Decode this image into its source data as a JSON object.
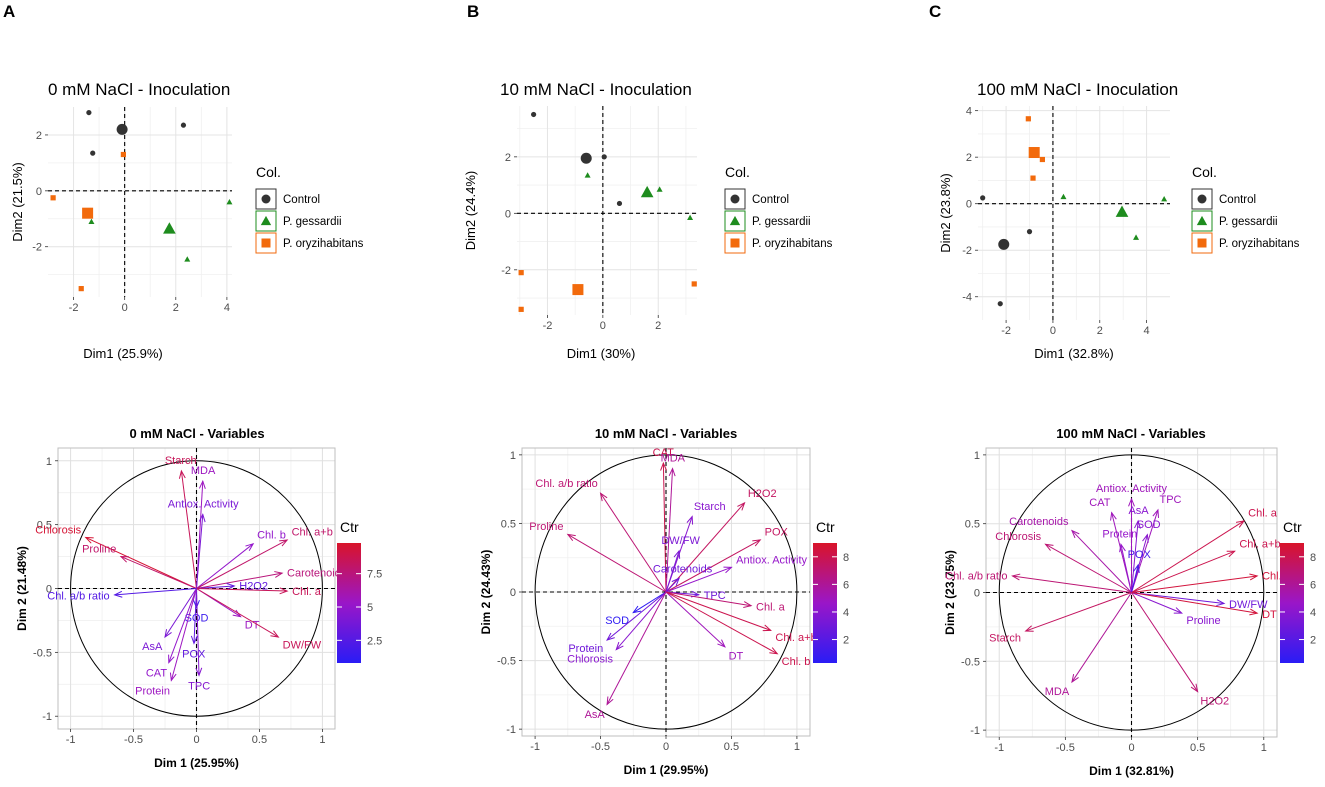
{
  "panels": [
    "A",
    "B",
    "C"
  ],
  "legend": {
    "title": "Col.",
    "groups": [
      {
        "name": "Control",
        "color": "#333333",
        "shape": "circle"
      },
      {
        "name": "P. gessardii",
        "color": "#1e8c1e",
        "shape": "triangle"
      },
      {
        "name": "P. oryzihabitans",
        "color": "#f26a0c",
        "shape": "square"
      }
    ]
  },
  "ctr_legend": {
    "title": "Ctr",
    "color_low": "#2a1cf5",
    "color_mid": "#9a16c8",
    "color_high": "#d9142a"
  },
  "chart_data": [
    {
      "type": "scatter",
      "title": "0 mM NaCl - Inoculation",
      "xlabel": "Dim1 (25.9%)",
      "ylabel": "Dim2 (21.5%)",
      "xlim": [
        -3.0,
        4.2
      ],
      "ylim": [
        -3.8,
        3.0
      ],
      "xticks": [
        -2,
        0,
        2,
        4
      ],
      "yticks": [
        -2,
        0,
        2
      ],
      "points": [
        {
          "group": "Control",
          "x": -1.4,
          "y": 2.8
        },
        {
          "group": "Control",
          "x": -1.25,
          "y": 1.35
        },
        {
          "group": "Control",
          "x": 2.3,
          "y": 2.35
        },
        {
          "group": "Control",
          "x": -0.1,
          "y": 2.2,
          "centroid": true
        },
        {
          "group": "P. gessardii",
          "x": -1.3,
          "y": -1.1
        },
        {
          "group": "P. gessardii",
          "x": 2.45,
          "y": -2.45
        },
        {
          "group": "P. gessardii",
          "x": 4.1,
          "y": -0.4
        },
        {
          "group": "P. gessardii",
          "x": 1.75,
          "y": -1.35,
          "centroid": true
        },
        {
          "group": "P. oryzihabitans",
          "x": -0.05,
          "y": 1.3
        },
        {
          "group": "P. oryzihabitans",
          "x": -2.8,
          "y": -0.25
        },
        {
          "group": "P. oryzihabitans",
          "x": -1.7,
          "y": -3.5
        },
        {
          "group": "P. oryzihabitans",
          "x": -1.45,
          "y": -0.8,
          "centroid": true
        }
      ]
    },
    {
      "type": "scatter",
      "title": "10 mM NaCl - Inoculation",
      "xlabel": "Dim1 (30%)",
      "ylabel": "Dim2 (24.4%)",
      "xlim": [
        -3.1,
        3.4
      ],
      "ylim": [
        -3.6,
        3.8
      ],
      "xticks": [
        -2,
        0,
        2
      ],
      "yticks": [
        -2,
        0,
        2
      ],
      "points": [
        {
          "group": "Control",
          "x": -2.5,
          "y": 3.5
        },
        {
          "group": "Control",
          "x": 0.05,
          "y": 2.0
        },
        {
          "group": "Control",
          "x": 0.6,
          "y": 0.35
        },
        {
          "group": "Control",
          "x": -0.6,
          "y": 1.95,
          "centroid": true
        },
        {
          "group": "P. gessardii",
          "x": -0.55,
          "y": 1.35
        },
        {
          "group": "P. gessardii",
          "x": 2.05,
          "y": 0.85
        },
        {
          "group": "P. gessardii",
          "x": 3.15,
          "y": -0.15
        },
        {
          "group": "P. gessardii",
          "x": 1.6,
          "y": 0.75,
          "centroid": true
        },
        {
          "group": "P. oryzihabitans",
          "x": -2.95,
          "y": -2.1
        },
        {
          "group": "P. oryzihabitans",
          "x": -2.95,
          "y": -3.4
        },
        {
          "group": "P. oryzihabitans",
          "x": 3.3,
          "y": -2.5
        },
        {
          "group": "P. oryzihabitans",
          "x": -0.9,
          "y": -2.7,
          "centroid": true
        }
      ]
    },
    {
      "type": "scatter",
      "title": "100 mM NaCl - Inoculation",
      "xlabel": "Dim1 (32.8%)",
      "ylabel": "Dim2 (23.8%)",
      "xlim": [
        -3.2,
        5.0
      ],
      "ylim": [
        -5.0,
        4.2
      ],
      "xticks": [
        -2,
        0,
        2,
        4
      ],
      "yticks": [
        -4,
        -2,
        0,
        2,
        4
      ],
      "points": [
        {
          "group": "Control",
          "x": -3.0,
          "y": 0.25
        },
        {
          "group": "Control",
          "x": -2.25,
          "y": -4.3
        },
        {
          "group": "Control",
          "x": -1.0,
          "y": -1.2
        },
        {
          "group": "Control",
          "x": -2.1,
          "y": -1.75,
          "centroid": true
        },
        {
          "group": "P. gessardii",
          "x": 0.45,
          "y": 0.3
        },
        {
          "group": "P. gessardii",
          "x": 3.55,
          "y": -1.45
        },
        {
          "group": "P. gessardii",
          "x": 4.75,
          "y": 0.2
        },
        {
          "group": "P. gessardii",
          "x": 2.95,
          "y": -0.35,
          "centroid": true
        },
        {
          "group": "P. oryzihabitans",
          "x": -1.05,
          "y": 3.65
        },
        {
          "group": "P. oryzihabitans",
          "x": -0.45,
          "y": 1.9
        },
        {
          "group": "P. oryzihabitans",
          "x": -0.85,
          "y": 1.1
        },
        {
          "group": "P. oryzihabitans",
          "x": -0.8,
          "y": 2.2,
          "centroid": true
        }
      ]
    },
    {
      "type": "biplot",
      "title": "0 mM NaCl - Variables",
      "xlabel": "Dim 1 (25.95%)",
      "ylabel": "Dim 2 (21.48%)",
      "xlim": [
        -1.1,
        1.1
      ],
      "ylim": [
        -1.1,
        1.1
      ],
      "ticks": [
        -1.0,
        -0.5,
        0.0,
        0.5,
        1.0
      ],
      "ctr_range": [
        0.8,
        9.8
      ],
      "ctr_ticks": [
        2.5,
        5.0,
        7.5
      ],
      "vectors": [
        {
          "label": "Starch",
          "x": -0.12,
          "y": 0.92,
          "ctr": 8.5
        },
        {
          "label": "MDA",
          "x": 0.05,
          "y": 0.84,
          "ctr": 5.5
        },
        {
          "label": "Antiox. Activity",
          "x": 0.05,
          "y": 0.58,
          "ctr": 4.0
        },
        {
          "label": "Chlorosis",
          "x": -0.88,
          "y": 0.4,
          "ctr": 9.5
        },
        {
          "label": "Proline",
          "x": -0.6,
          "y": 0.25,
          "ctr": 8.0
        },
        {
          "label": "Chl. b",
          "x": 0.45,
          "y": 0.35,
          "ctr": 5.0
        },
        {
          "label": "Chl. a+b",
          "x": 0.72,
          "y": 0.38,
          "ctr": 8.0
        },
        {
          "label": "Carotenoids",
          "x": 0.68,
          "y": 0.12,
          "ctr": 7.5
        },
        {
          "label": "H2O2",
          "x": 0.3,
          "y": 0.02,
          "ctr": 3.0
        },
        {
          "label": "Chl. a",
          "x": 0.72,
          "y": -0.02,
          "ctr": 8.5
        },
        {
          "label": "Chl. a/b ratio",
          "x": -0.65,
          "y": -0.05,
          "ctr": 2.5
        },
        {
          "label": "SOD",
          "x": 0.0,
          "y": -0.15,
          "ctr": 1.5
        },
        {
          "label": "DT",
          "x": 0.35,
          "y": -0.22,
          "ctr": 5.5
        },
        {
          "label": "DW/FW",
          "x": 0.65,
          "y": -0.38,
          "ctr": 8.5
        },
        {
          "label": "AsA",
          "x": -0.25,
          "y": -0.38,
          "ctr": 4.0
        },
        {
          "label": "POX",
          "x": -0.02,
          "y": -0.43,
          "ctr": 3.0
        },
        {
          "label": "CAT",
          "x": -0.22,
          "y": -0.58,
          "ctr": 5.0
        },
        {
          "label": "Protein",
          "x": -0.2,
          "y": -0.72,
          "ctr": 5.5
        },
        {
          "label": "TPC",
          "x": 0.02,
          "y": -0.68,
          "ctr": 4.5
        }
      ]
    },
    {
      "type": "biplot",
      "title": "10 mM NaCl - Variables",
      "xlabel": "Dim 1 (29.95%)",
      "ylabel": "Dim 2 (24.43%)",
      "xlim": [
        -1.1,
        1.1
      ],
      "ylim": [
        -1.05,
        1.05
      ],
      "ticks": [
        -1.0,
        -0.5,
        0.0,
        0.5,
        1.0
      ],
      "ctr_range": [
        0.3,
        9.0
      ],
      "ctr_ticks": [
        2,
        4,
        6,
        8
      ],
      "vectors": [
        {
          "label": "CAT",
          "x": -0.02,
          "y": 0.94,
          "ctr": 8.0
        },
        {
          "label": "MDA",
          "x": 0.05,
          "y": 0.9,
          "ctr": 6.0
        },
        {
          "label": "Chl. a/b ratio",
          "x": -0.5,
          "y": 0.72,
          "ctr": 7.0
        },
        {
          "label": "H2O2",
          "x": 0.6,
          "y": 0.65,
          "ctr": 7.5
        },
        {
          "label": "Starch",
          "x": 0.2,
          "y": 0.55,
          "ctr": 4.0
        },
        {
          "label": "Proline",
          "x": -0.75,
          "y": 0.42,
          "ctr": 7.0
        },
        {
          "label": "POX",
          "x": 0.72,
          "y": 0.38,
          "ctr": 7.5
        },
        {
          "label": "DW/FW",
          "x": 0.1,
          "y": 0.3,
          "ctr": 3.5
        },
        {
          "label": "Antiox. Activity",
          "x": 0.5,
          "y": 0.18,
          "ctr": 4.5
        },
        {
          "label": "Carotenoids",
          "x": 0.1,
          "y": 0.1,
          "ctr": 3.0
        },
        {
          "label": "TPC",
          "x": 0.25,
          "y": -0.02,
          "ctr": 3.0
        },
        {
          "label": "SOD",
          "x": -0.25,
          "y": -0.15,
          "ctr": 0.5
        },
        {
          "label": "Chl. a",
          "x": 0.65,
          "y": -0.1,
          "ctr": 7.0
        },
        {
          "label": "Chl. a+b",
          "x": 0.8,
          "y": -0.28,
          "ctr": 8.0
        },
        {
          "label": "DT",
          "x": 0.45,
          "y": -0.4,
          "ctr": 5.0
        },
        {
          "label": "Chl. b",
          "x": 0.85,
          "y": -0.45,
          "ctr": 8.0
        },
        {
          "label": "Protein",
          "x": -0.45,
          "y": -0.35,
          "ctr": 3.0
        },
        {
          "label": "Chlorosis",
          "x": -0.38,
          "y": -0.42,
          "ctr": 4.0
        },
        {
          "label": "AsA",
          "x": -0.45,
          "y": -0.82,
          "ctr": 6.0
        }
      ]
    },
    {
      "type": "biplot",
      "title": "100 mM NaCl - Variables",
      "xlabel": "Dim 1 (32.81%)",
      "ylabel": "Dim 2 (23.75%)",
      "xlim": [
        -1.1,
        1.1
      ],
      "ylim": [
        -1.05,
        1.05
      ],
      "ticks": [
        -1.0,
        -0.5,
        0.0,
        0.5,
        1.0
      ],
      "ctr_range": [
        0.3,
        9.0
      ],
      "ctr_ticks": [
        2,
        4,
        6,
        8
      ],
      "vectors": [
        {
          "label": "Antiox. Activity",
          "x": 0.0,
          "y": 0.68,
          "ctr": 5.0
        },
        {
          "label": "TPC",
          "x": 0.2,
          "y": 0.6,
          "ctr": 5.0
        },
        {
          "label": "CAT",
          "x": -0.15,
          "y": 0.58,
          "ctr": 5.0
        },
        {
          "label": "AsA",
          "x": 0.05,
          "y": 0.52,
          "ctr": 4.0
        },
        {
          "label": "Carotenoids",
          "x": -0.45,
          "y": 0.45,
          "ctr": 5.5
        },
        {
          "label": "SOD",
          "x": 0.12,
          "y": 0.42,
          "ctr": 4.0
        },
        {
          "label": "Protein",
          "x": -0.08,
          "y": 0.35,
          "ctr": 4.5
        },
        {
          "label": "Chl. a",
          "x": 0.85,
          "y": 0.52,
          "ctr": 8.0
        },
        {
          "label": "Chlorosis",
          "x": -0.65,
          "y": 0.35,
          "ctr": 7.0
        },
        {
          "label": "Chl. a+b",
          "x": 0.78,
          "y": 0.3,
          "ctr": 8.0
        },
        {
          "label": "POX",
          "x": 0.05,
          "y": 0.2,
          "ctr": 1.5
        },
        {
          "label": "Chl. b",
          "x": 0.95,
          "y": 0.12,
          "ctr": 8.5
        },
        {
          "label": "Chl. a/b ratio",
          "x": -0.9,
          "y": 0.12,
          "ctr": 7.0
        },
        {
          "label": "DW/FW",
          "x": 0.7,
          "y": -0.08,
          "ctr": 3.0
        },
        {
          "label": "Proline",
          "x": 0.38,
          "y": -0.15,
          "ctr": 4.0
        },
        {
          "label": "DT",
          "x": 0.95,
          "y": -0.15,
          "ctr": 8.5
        },
        {
          "label": "Starch",
          "x": -0.8,
          "y": -0.28,
          "ctr": 7.5
        },
        {
          "label": "MDA",
          "x": -0.45,
          "y": -0.65,
          "ctr": 6.0
        },
        {
          "label": "H2O2",
          "x": 0.5,
          "y": -0.72,
          "ctr": 7.0
        }
      ]
    }
  ]
}
